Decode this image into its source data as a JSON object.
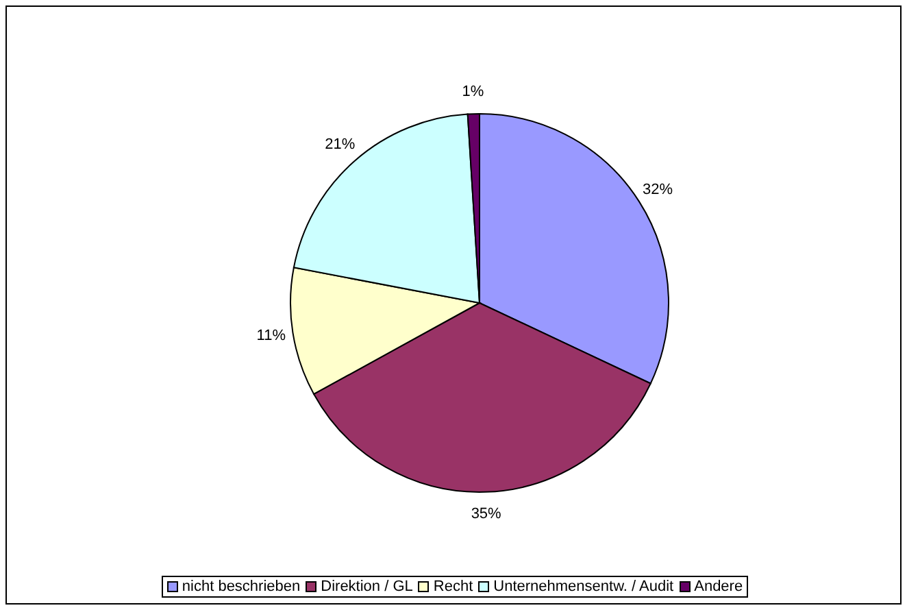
{
  "chart_data": {
    "type": "pie",
    "categories": [
      "nicht beschrieben",
      "Direktion / GL",
      "Recht",
      "Unternehmensentw. / Audit",
      "Andere"
    ],
    "values": [
      32,
      35,
      11,
      21,
      1
    ],
    "colors": [
      "#9999ff",
      "#993366",
      "#ffffcc",
      "#ccffff",
      "#660066"
    ],
    "value_labels": [
      "32%",
      "35%",
      "11%",
      "21%",
      "1%"
    ],
    "legend": "bottom"
  }
}
